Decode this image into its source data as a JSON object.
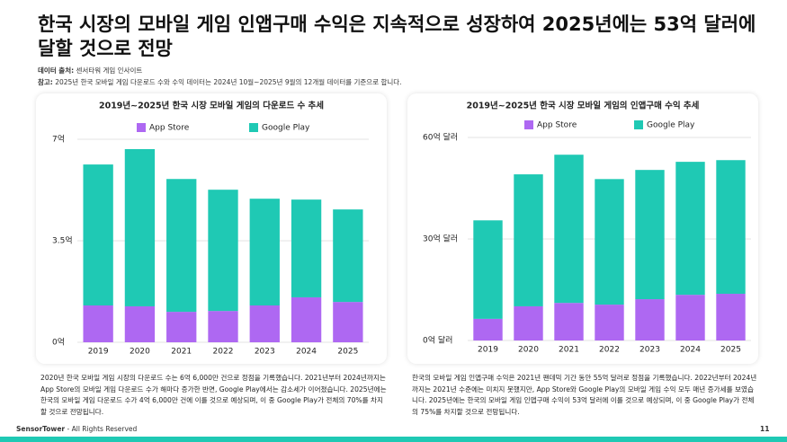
{
  "header": {
    "title": "한국 시장의 모바일 게임 인앱구매 수익은 지속적으로 성장하여 2025년에는 53억 달러에 달할 것으로 전망",
    "source_label": "데이터 출처:",
    "source": "센서타워 게임 인사이트",
    "note_label": "참고:",
    "note": "2025년 한국 모바일 게임 다운로드 수와 수익 데이터는 2024년 10월~2025년 9월의 12개월 데이터를 기준으로 합니다."
  },
  "chart_data": [
    {
      "type": "bar",
      "stacked": true,
      "title": "2019년~2025년 한국 시장 모바일 게임의 다운로드 수 추세",
      "categories": [
        "2019",
        "2020",
        "2021",
        "2022",
        "2023",
        "2024",
        "2025"
      ],
      "series": [
        {
          "name": "App Store",
          "color": "#ae68f2",
          "values": [
            1.27,
            1.24,
            1.05,
            1.08,
            1.27,
            1.55,
            1.39
          ]
        },
        {
          "name": "Google Play",
          "color": "#1fc9b4",
          "values": [
            4.86,
            5.42,
            4.58,
            4.18,
            3.68,
            3.37,
            3.19
          ]
        }
      ],
      "ylim": [
        0,
        7
      ],
      "yticks": [
        {
          "value": 0,
          "label": "0억"
        },
        {
          "value": 3.5,
          "label": "3.5억"
        },
        {
          "value": 7,
          "label": "7억"
        }
      ],
      "grid": true,
      "legend": "top"
    },
    {
      "type": "bar",
      "stacked": true,
      "title": "2019년~2025년 한국 시장 모바일 게임의 인앱구매 수익 추세",
      "categories": [
        "2019",
        "2020",
        "2021",
        "2022",
        "2023",
        "2024",
        "2025"
      ],
      "series": [
        {
          "name": "App Store",
          "color": "#ae68f2",
          "values": [
            6.4,
            10.1,
            11.1,
            10.6,
            12.2,
            13.5,
            13.8
          ]
        },
        {
          "name": "Google Play",
          "color": "#1fc9b4",
          "values": [
            29.1,
            39.0,
            43.8,
            37.1,
            38.2,
            39.3,
            39.5
          ]
        }
      ],
      "ylim": [
        0,
        60
      ],
      "yticks": [
        {
          "value": 0,
          "label": "0억 달러"
        },
        {
          "value": 30,
          "label": "30억 달러"
        },
        {
          "value": 60,
          "label": "60억 달러"
        }
      ],
      "grid": true,
      "legend": "top"
    }
  ],
  "descriptions": [
    "2020년 한국 모바일 게임 시장의 다운로드 수는 6억 6,000만 건으로 정점을 기록했습니다. 2021년부터 2024년까지는 App Store의 모바일 게임 다운로드 수가 해마다 증가한 반면, Google Play에서는 감소세가 이어졌습니다. 2025년에는 한국의 모바일 게임 다운로드 수가 4억 6,000만 건에 이를 것으로 예상되며, 이 중 Google Play가 전체의 70%를 차지할 것으로 전망됩니다.",
    "한국의 모바일 게임 인앱구매 수익은 2021년 팬데믹 기간 동안 55억 달러로 정점을 기록했습니다. 2022년부터 2024년까지는 2021년 수준에는 미치지 못했지만, App Store와 Google Play의 모바일 게임 수익 모두 매년 증가세를 보였습니다. 2025년에는 한국의 모바일 게임 인앱구매 수익이 53억 달러에 이를 것으로 예상되며, 이 중 Google Play가 전체의 75%를 차지할 것으로 전망됩니다."
  ],
  "footer": {
    "brand": "SensorTower",
    "text": "- All Rights Reserved",
    "page": 11
  }
}
